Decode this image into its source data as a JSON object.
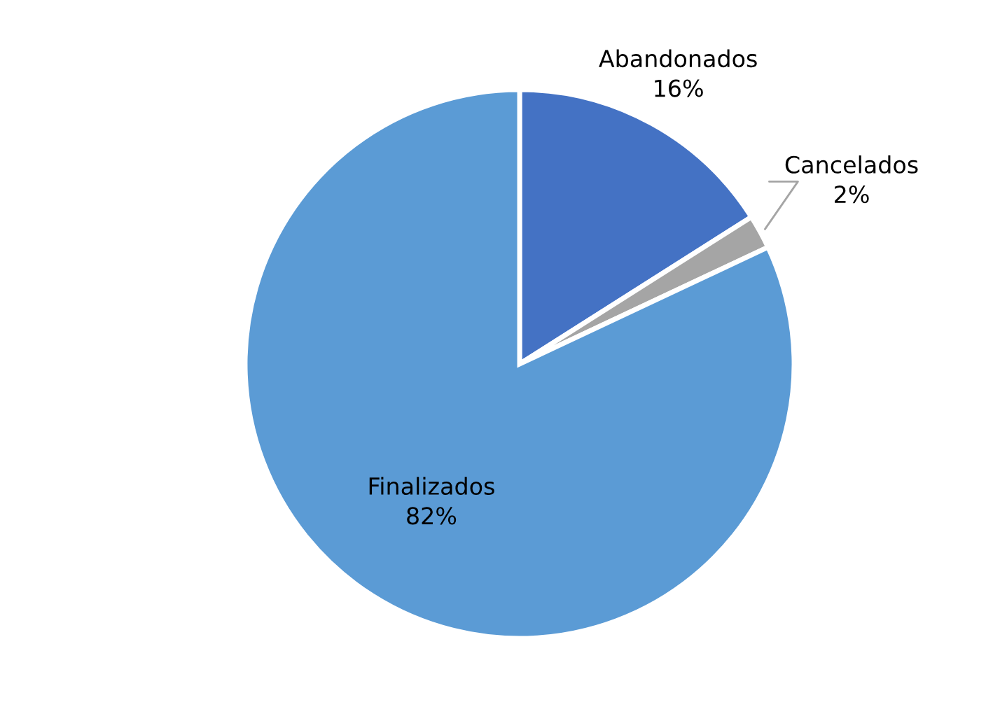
{
  "chart_data": {
    "type": "pie",
    "categories": [
      "Abandonados",
      "Cancelados",
      "Finalizados"
    ],
    "values": [
      16,
      2,
      82
    ],
    "colors": [
      "#4472c4",
      "#a5a5a5",
      "#5b9bd5"
    ],
    "value_labels": [
      "16%",
      "2%",
      "82%"
    ],
    "legend": false
  }
}
